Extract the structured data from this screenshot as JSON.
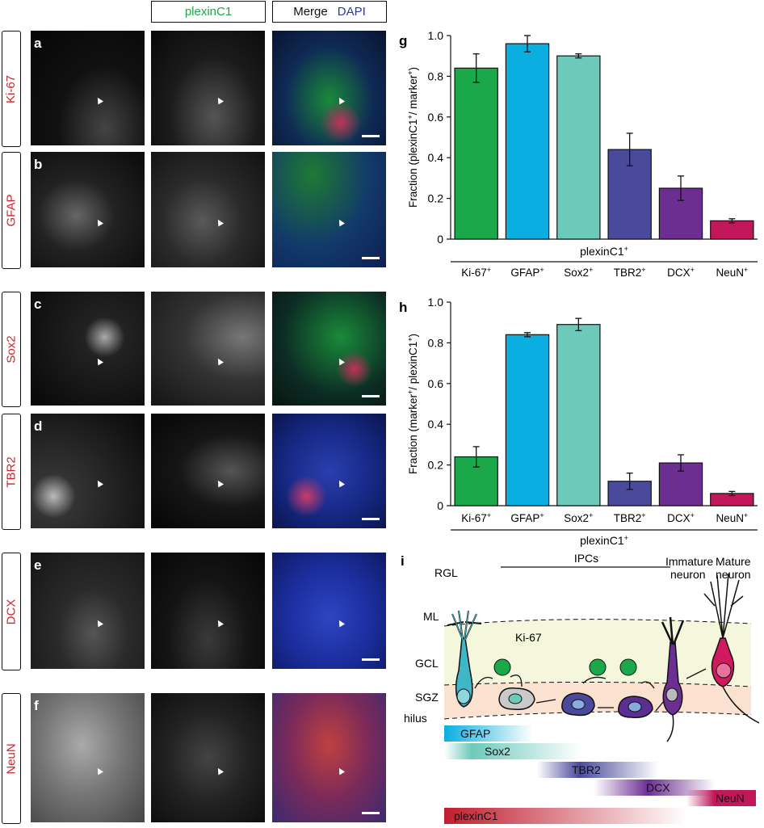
{
  "header": {
    "plexin_label": "plexinC1",
    "merge_label": "Merge",
    "dapi_label": "DAPI",
    "colors": {
      "plexin": "#1aa84a",
      "dapi": "#2b3a9c",
      "marker": "#d2232a"
    }
  },
  "rows": [
    {
      "letter": "a",
      "marker": "Ki-67"
    },
    {
      "letter": "b",
      "marker": "GFAP"
    },
    {
      "letter": "c",
      "marker": "Sox2"
    },
    {
      "letter": "d",
      "marker": "TBR2"
    },
    {
      "letter": "e",
      "marker": "DCX"
    },
    {
      "letter": "f",
      "marker": "NeuN"
    }
  ],
  "chart_data": [
    {
      "panel": "g",
      "type": "bar",
      "categories": [
        "Ki-67",
        "GFAP",
        "Sox2",
        "TBR2",
        "DCX",
        "NeuN"
      ],
      "values": [
        0.84,
        0.96,
        0.9,
        0.44,
        0.25,
        0.09
      ],
      "errors": [
        0.07,
        0.04,
        0.01,
        0.08,
        0.06,
        0.01
      ],
      "colors": [
        "#1aa84a",
        "#0aaee0",
        "#6dcabb",
        "#4a4a9c",
        "#6c2e91",
        "#c2185b"
      ],
      "ylabel_main": "Fraction (plexinC1",
      "ylabel_sup1": "+",
      "ylabel_mid": "/ marker",
      "ylabel_sup2": "+",
      "ylabel_end": ")",
      "group_label": "plexinC1",
      "group_sup": "+",
      "ylim": [
        0,
        1.0
      ],
      "yticks": [
        "0",
        "0.2",
        "0.4",
        "0.6",
        "0.8",
        "1.0"
      ]
    },
    {
      "panel": "h",
      "type": "bar",
      "categories": [
        "Ki-67",
        "GFAP",
        "Sox2",
        "TBR2",
        "DCX",
        "NeuN"
      ],
      "values": [
        0.24,
        0.84,
        0.89,
        0.12,
        0.21,
        0.06
      ],
      "errors": [
        0.05,
        0.01,
        0.03,
        0.04,
        0.04,
        0.01
      ],
      "colors": [
        "#1aa84a",
        "#0aaee0",
        "#6dcabb",
        "#4a4a9c",
        "#6c2e91",
        "#c2185b"
      ],
      "ylabel_main": "Fraction (marker",
      "ylabel_sup1": "+",
      "ylabel_mid": "/ plexinC1",
      "ylabel_sup2": "+",
      "ylabel_end": ")",
      "group_label": "plexinC1",
      "group_sup": "+",
      "ylim": [
        0,
        1.0
      ],
      "yticks": [
        "0",
        "0.2",
        "0.4",
        "0.6",
        "0.8",
        "1.0"
      ]
    }
  ],
  "schematic": {
    "panel": "i",
    "stage_rgl": "RGL",
    "stage_ipcs": "IPCs",
    "stage_immature_1": "Immature",
    "stage_immature_2": "neuron",
    "stage_mature_1": "Mature",
    "stage_mature_2": "neuron",
    "layer_ml": "ML",
    "layer_gcl": "GCL",
    "layer_sgz": "SGZ",
    "layer_hilus": "hilus",
    "ki67": "Ki-67",
    "bar_gfap": "GFAP",
    "bar_sox2": "Sox2",
    "bar_tbr2": "TBR2",
    "bar_dcx": "DCX",
    "bar_neun": "NeuN",
    "bar_plexin": "plexinC1"
  }
}
